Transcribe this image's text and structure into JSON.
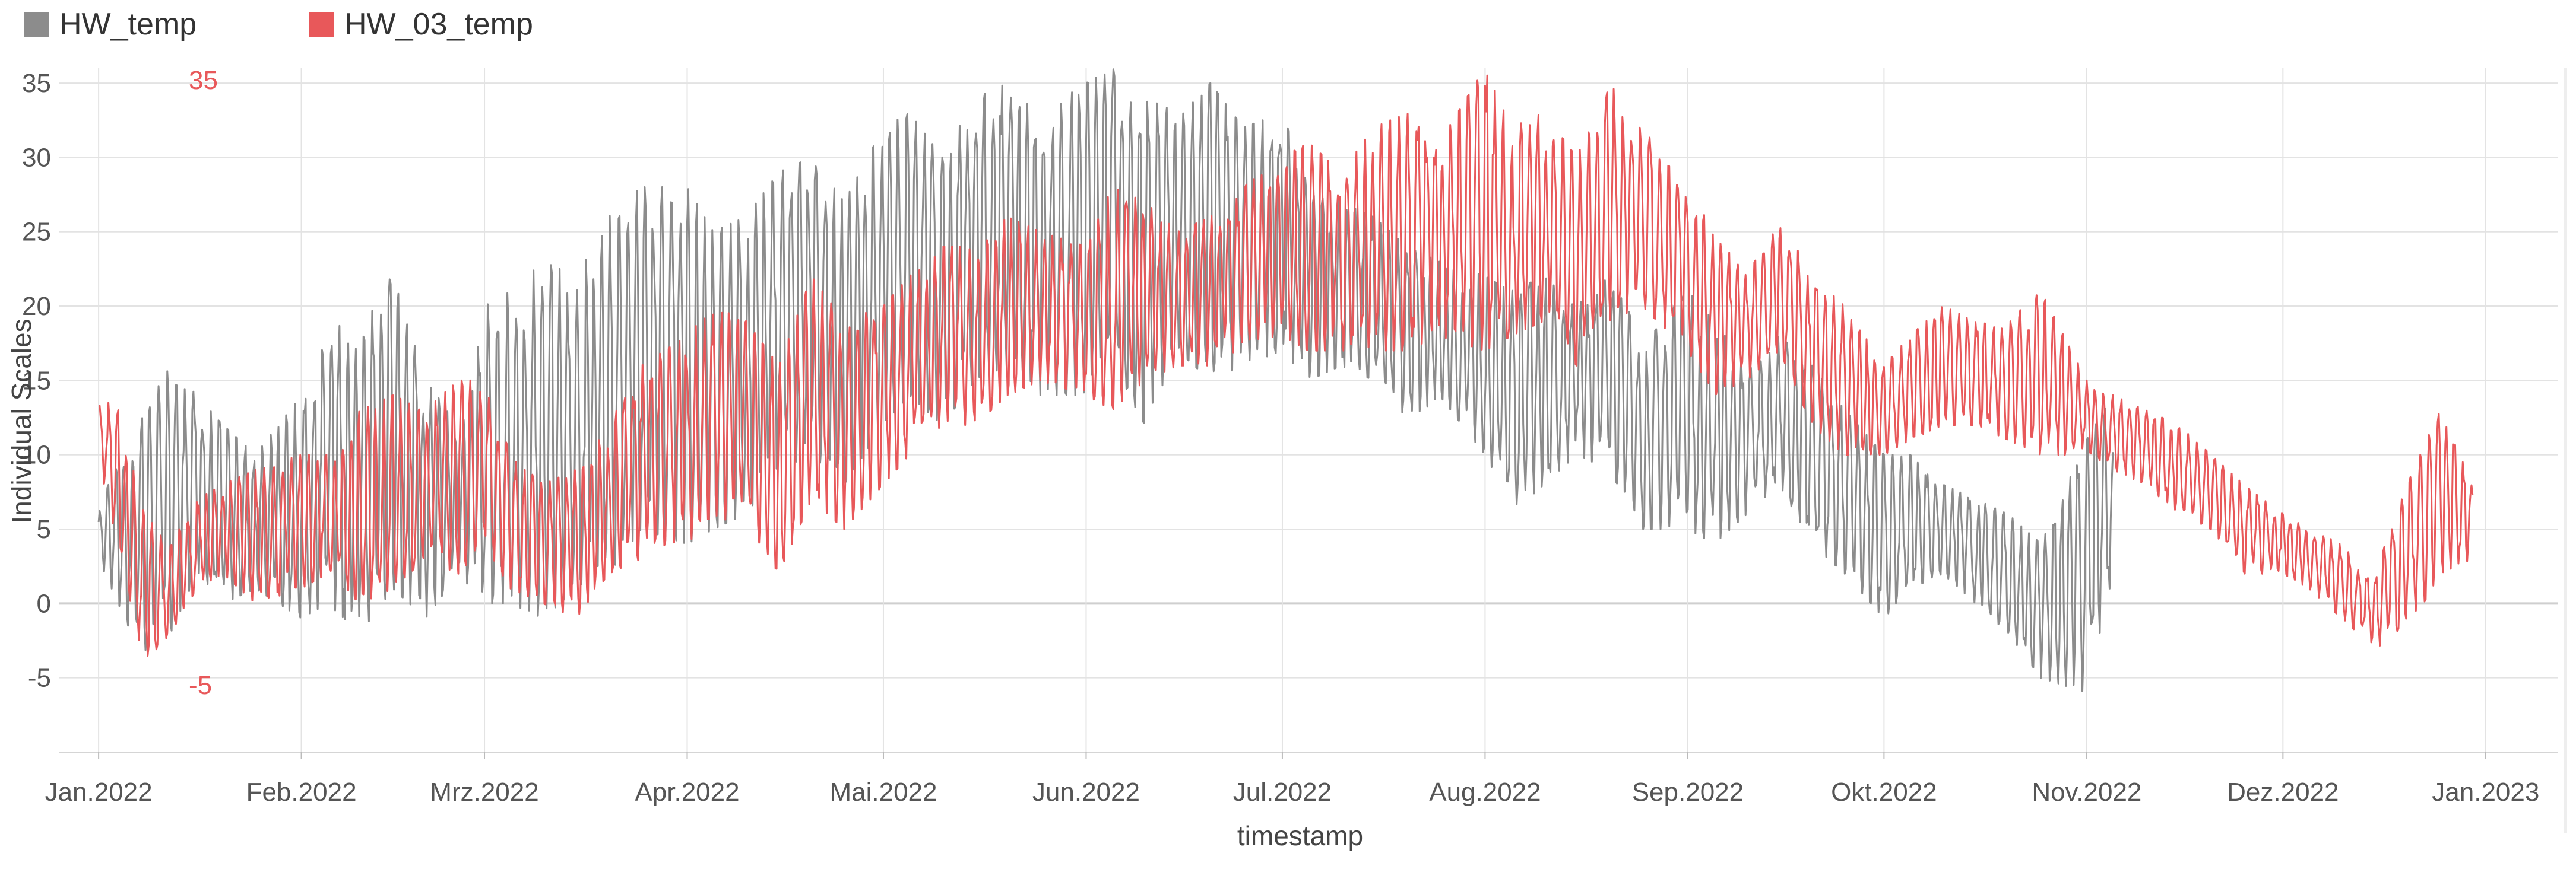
{
  "chart_data": {
    "type": "line",
    "xlabel": "timestamp",
    "ylabel": "Individual Scales",
    "ylim": [
      -10,
      36
    ],
    "yticks": [
      -5,
      0,
      5,
      10,
      15,
      20,
      25,
      30,
      35
    ],
    "xlim": [
      "2021-12-26",
      "2023-01-12"
    ],
    "xticks": [
      "Jan.2022",
      "Feb.2022",
      "Mrz.2022",
      "Apr.2022",
      "Mai.2022",
      "Jun.2022",
      "Jul.2022",
      "Aug.2022",
      "Sep.2022",
      "Okt.2022",
      "Nov.2022",
      "Dez.2022",
      "Jan.2023"
    ],
    "xtick_dates": [
      "2022-01-01",
      "2022-02-01",
      "2022-03-01",
      "2022-04-01",
      "2022-05-01",
      "2022-06-01",
      "2022-07-01",
      "2022-08-01",
      "2022-09-01",
      "2022-10-01",
      "2022-11-01",
      "2022-12-01",
      "2023-01-01"
    ],
    "grid": true,
    "legend_position": "top-left",
    "individual_scale": {
      "max_label": "35",
      "min_label": "-5",
      "color": "#e8585a"
    },
    "series": [
      {
        "name": "HW_temp",
        "color": "#8c8c8c",
        "sample_dates": [
          "2022-01-01",
          "2022-01-04",
          "2022-01-08",
          "2022-01-12",
          "2022-01-16",
          "2022-01-20",
          "2022-01-25",
          "2022-02-01",
          "2022-02-05",
          "2022-02-10",
          "2022-02-15",
          "2022-02-20",
          "2022-02-25",
          "2022-03-01",
          "2022-03-05",
          "2022-03-10",
          "2022-03-15",
          "2022-03-20",
          "2022-03-25",
          "2022-04-01",
          "2022-04-05",
          "2022-04-10",
          "2022-04-15",
          "2022-04-20",
          "2022-04-25",
          "2022-05-01",
          "2022-05-05",
          "2022-05-10",
          "2022-05-15",
          "2022-05-20",
          "2022-05-25",
          "2022-06-01",
          "2022-06-05",
          "2022-06-10",
          "2022-06-15",
          "2022-06-20",
          "2022-06-25",
          "2022-07-01",
          "2022-07-05",
          "2022-07-10",
          "2022-07-15",
          "2022-07-20",
          "2022-07-25",
          "2022-08-01",
          "2022-08-05",
          "2022-08-10",
          "2022-08-15",
          "2022-08-20",
          "2022-08-25",
          "2022-09-01",
          "2022-09-05",
          "2022-09-10",
          "2022-09-15",
          "2022-09-20",
          "2022-09-25",
          "2022-10-01",
          "2022-10-05",
          "2022-10-10",
          "2022-10-15",
          "2022-10-20",
          "2022-10-25",
          "2022-11-01",
          "2022-11-05"
        ],
        "sample_low": [
          3,
          0,
          -4,
          -2,
          2,
          0,
          1,
          -1,
          0,
          -2,
          1,
          -1,
          2,
          0,
          0,
          -1,
          1,
          2,
          5,
          4,
          5,
          6,
          9,
          10,
          8,
          12,
          14,
          12,
          15,
          16,
          14,
          14,
          16,
          12,
          17,
          15,
          16,
          17,
          15,
          16,
          15,
          12,
          14,
          10,
          6,
          8,
          10,
          9,
          5,
          5,
          4,
          6,
          8,
          4,
          2,
          -1,
          1,
          2,
          0,
          -2,
          -5,
          -6,
          2
        ],
        "sample_high": [
          6,
          10,
          13,
          16,
          14,
          12,
          10,
          14,
          18,
          20,
          22,
          15,
          12,
          20,
          21,
          23,
          22,
          26,
          28,
          28,
          25,
          26,
          29,
          30,
          27,
          32,
          33,
          30,
          34,
          35,
          33,
          35,
          36,
          34,
          33,
          35,
          32,
          33,
          28,
          27,
          26,
          24,
          23,
          22,
          21,
          22,
          20,
          22,
          18,
          21,
          19,
          16,
          18,
          16,
          13,
          10,
          10,
          8,
          7,
          6,
          4,
          11,
          14
        ]
      },
      {
        "name": "HW_03_temp",
        "color": "#e8585a",
        "sample_dates": [
          "2022-01-01",
          "2022-01-04",
          "2022-01-08",
          "2022-01-12",
          "2022-01-16",
          "2022-01-20",
          "2022-01-25",
          "2022-02-01",
          "2022-02-05",
          "2022-02-10",
          "2022-02-15",
          "2022-02-20",
          "2022-02-25",
          "2022-03-01",
          "2022-03-05",
          "2022-03-10",
          "2022-03-15",
          "2022-03-20",
          "2022-03-25",
          "2022-04-01",
          "2022-04-05",
          "2022-04-10",
          "2022-04-15",
          "2022-04-20",
          "2022-04-25",
          "2022-05-01",
          "2022-05-05",
          "2022-05-10",
          "2022-05-15",
          "2022-05-20",
          "2022-05-25",
          "2022-06-01",
          "2022-06-05",
          "2022-06-10",
          "2022-06-15",
          "2022-06-20",
          "2022-06-25",
          "2022-07-01",
          "2022-07-05",
          "2022-07-10",
          "2022-07-15",
          "2022-07-20",
          "2022-07-25",
          "2022-08-01",
          "2022-08-05",
          "2022-08-10",
          "2022-08-15",
          "2022-08-20",
          "2022-08-25",
          "2022-09-01",
          "2022-09-05",
          "2022-09-10",
          "2022-09-15",
          "2022-09-20",
          "2022-09-25",
          "2022-10-01",
          "2022-10-05",
          "2022-10-10",
          "2022-10-15",
          "2022-10-20",
          "2022-10-25",
          "2022-11-01",
          "2022-11-05",
          "2022-11-10",
          "2022-11-15",
          "2022-11-20",
          "2022-11-25",
          "2022-12-01",
          "2022-12-05",
          "2022-12-10",
          "2022-12-15",
          "2022-12-20",
          "2022-12-25",
          "2022-12-30"
        ],
        "sample_low": [
          10,
          3,
          -4,
          -2,
          1,
          2,
          0,
          1,
          2,
          0,
          1,
          3,
          2,
          4,
          1,
          0,
          -1,
          2,
          3,
          4,
          6,
          5,
          2,
          7,
          5,
          8,
          10,
          12,
          12,
          14,
          15,
          14,
          13,
          15,
          16,
          16,
          17,
          18,
          17,
          17,
          17,
          17,
          18,
          17,
          18,
          19,
          16,
          19,
          20,
          17,
          14,
          15,
          17,
          12,
          10,
          10,
          11,
          12,
          12,
          11,
          10,
          10,
          9,
          8,
          6,
          5,
          2,
          2,
          1,
          -1,
          -3,
          -2,
          2,
          3
        ],
        "sample_high": [
          14,
          13,
          6,
          4,
          7,
          8,
          9,
          10,
          10,
          13,
          14,
          13,
          15,
          15,
          10,
          8,
          9,
          12,
          16,
          18,
          20,
          19,
          16,
          22,
          19,
          20,
          22,
          24,
          24,
          26,
          25,
          24,
          28,
          27,
          25,
          26,
          28,
          30,
          31,
          29,
          32,
          33,
          31,
          36,
          32,
          33,
          30,
          35,
          32,
          28,
          25,
          22,
          26,
          22,
          20,
          16,
          18,
          20,
          19,
          19,
          21,
          15,
          14,
          13,
          12,
          10,
          8,
          6,
          5,
          4,
          2,
          8,
          13,
          8
        ]
      }
    ]
  }
}
